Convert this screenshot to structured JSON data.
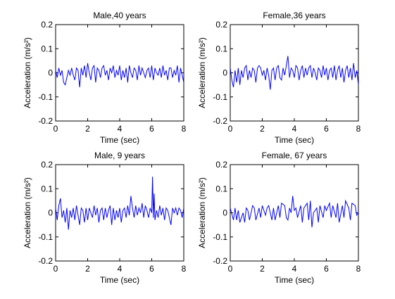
{
  "chart_data": [
    {
      "type": "line",
      "title": "Male,40 years",
      "xlabel": "Time (sec)",
      "ylabel": "Acceleration (m/s²)",
      "xlim": [
        0,
        8
      ],
      "ylim": [
        -0.2,
        0.2
      ],
      "xticks": [
        "0",
        "2",
        "4",
        "6",
        "8"
      ],
      "yticks": [
        "-0.2",
        "-0.1",
        "0",
        "0.1",
        "0.2"
      ],
      "grid": false,
      "series": [
        {
          "color": "#0000ff",
          "x": [
            0,
            0.1,
            0.2,
            0.3,
            0.4,
            0.5,
            0.6,
            0.7,
            0.8,
            0.9,
            1,
            1.1,
            1.2,
            1.3,
            1.4,
            1.5,
            1.6,
            1.7,
            1.8,
            1.9,
            2,
            2.1,
            2.2,
            2.3,
            2.4,
            2.5,
            2.6,
            2.7,
            2.8,
            2.9,
            3,
            3.1,
            3.2,
            3.3,
            3.4,
            3.5,
            3.6,
            3.7,
            3.8,
            3.9,
            4,
            4.1,
            4.2,
            4.3,
            4.4,
            4.5,
            4.6,
            4.7,
            4.8,
            4.9,
            5,
            5.1,
            5.2,
            5.3,
            5.4,
            5.5,
            5.6,
            5.7,
            5.8,
            5.9,
            6,
            6.1,
            6.2,
            6.3,
            6.4,
            6.5,
            6.6,
            6.7,
            6.8,
            6.9,
            7,
            7.1,
            7.2,
            7.3,
            7.4,
            7.5,
            7.6,
            7.7,
            7.8,
            7.9,
            8
          ],
          "y": [
            0.01,
            -0.02,
            0.02,
            -0.01,
            0.01,
            -0.04,
            -0.05,
            -0.02,
            0.01,
            -0.01,
            0.02,
            -0.01,
            -0.03,
            0.02,
            0.01,
            -0.06,
            0.02,
            -0.01,
            0.03,
            -0.02,
            0.04,
            0.0,
            -0.03,
            0.02,
            0.03,
            -0.04,
            0.02,
            0.01,
            -0.02,
            0.02,
            0.03,
            -0.01,
            0.01,
            -0.03,
            0.02,
            0.0,
            0.03,
            -0.02,
            0.01,
            -0.01,
            0.03,
            -0.03,
            0.01,
            -0.02,
            0.02,
            -0.04,
            0.03,
            0.0,
            -0.02,
            0.02,
            0.01,
            -0.03,
            0.03,
            -0.01,
            0.02,
            0.0,
            -0.02,
            0.01,
            0.02,
            -0.02,
            0.03,
            -0.03,
            0.02,
            0.0,
            -0.01,
            0.02,
            -0.02,
            0.03,
            -0.01,
            0.01,
            -0.03,
            0.02,
            0.02,
            -0.02,
            0.01,
            -0.01,
            0.03,
            -0.04,
            0.02,
            -0.01,
            -0.04
          ]
        }
      ]
    },
    {
      "type": "line",
      "title": "Female,36 years",
      "xlabel": "Time (sec)",
      "ylabel": "Acceleration (m/s²)",
      "xlim": [
        0,
        8
      ],
      "ylim": [
        -0.2,
        0.2
      ],
      "xticks": [
        "0",
        "2",
        "4",
        "6",
        "8"
      ],
      "yticks": [
        "-0.2",
        "-0.1",
        "0",
        "0.1",
        "0.2"
      ],
      "grid": false,
      "series": [
        {
          "color": "#0000ff",
          "x": [
            0,
            0.1,
            0.2,
            0.3,
            0.4,
            0.5,
            0.6,
            0.7,
            0.8,
            0.9,
            1,
            1.1,
            1.2,
            1.3,
            1.4,
            1.5,
            1.6,
            1.7,
            1.8,
            1.9,
            2,
            2.1,
            2.2,
            2.3,
            2.4,
            2.5,
            2.6,
            2.7,
            2.8,
            2.9,
            3,
            3.1,
            3.2,
            3.3,
            3.4,
            3.5,
            3.6,
            3.7,
            3.8,
            3.9,
            4,
            4.1,
            4.2,
            4.3,
            4.4,
            4.5,
            4.6,
            4.7,
            4.8,
            4.9,
            5,
            5.1,
            5.2,
            5.3,
            5.4,
            5.5,
            5.6,
            5.7,
            5.8,
            5.9,
            6,
            6.1,
            6.2,
            6.3,
            6.4,
            6.5,
            6.6,
            6.7,
            6.8,
            6.9,
            7,
            7.1,
            7.2,
            7.3,
            7.4,
            7.5,
            7.6,
            7.7,
            7.8,
            7.9,
            8
          ],
          "y": [
            0.02,
            -0.03,
            -0.06,
            0.01,
            -0.04,
            0.02,
            -0.05,
            0.01,
            -0.02,
            0.02,
            0.03,
            -0.03,
            0.01,
            -0.02,
            0.02,
            0.01,
            -0.04,
            0.02,
            0.03,
            0.02,
            -0.01,
            0.01,
            -0.03,
            0.02,
            -0.01,
            -0.07,
            0.01,
            0.02,
            -0.03,
            0.02,
            0.03,
            -0.02,
            -0.03,
            0.02,
            -0.01,
            0.03,
            0.07,
            -0.02,
            0.02,
            0.01,
            -0.02,
            0.03,
            0.02,
            -0.03,
            0.01,
            0.03,
            -0.02,
            0.02,
            -0.01,
            0.02,
            0.03,
            -0.02,
            0.02,
            0.0,
            -0.03,
            0.02,
            0.01,
            -0.02,
            0.03,
            -0.01,
            0.02,
            -0.03,
            0.01,
            0.02,
            -0.02,
            0.03,
            -0.03,
            0.01,
            0.03,
            -0.02,
            0.02,
            -0.04,
            0.01,
            0.03,
            -0.02,
            0.02,
            -0.03,
            0.04,
            -0.02,
            0.01,
            -0.05
          ]
        }
      ]
    },
    {
      "type": "line",
      "title": "Male, 9 years",
      "xlabel": "Time (sec)",
      "ylabel": "Acceleration (m/s²)",
      "xlim": [
        0,
        8
      ],
      "ylim": [
        -0.2,
        0.2
      ],
      "xticks": [
        "0",
        "2",
        "4",
        "6",
        "8"
      ],
      "yticks": [
        "-0.2",
        "-0.1",
        "0",
        "0.1",
        "0.2"
      ],
      "grid": false,
      "series": [
        {
          "color": "#0000ff",
          "x": [
            0,
            0.1,
            0.2,
            0.3,
            0.4,
            0.5,
            0.6,
            0.7,
            0.8,
            0.9,
            1,
            1.1,
            1.2,
            1.3,
            1.4,
            1.5,
            1.6,
            1.7,
            1.8,
            1.9,
            2,
            2.1,
            2.2,
            2.3,
            2.4,
            2.5,
            2.6,
            2.7,
            2.8,
            2.9,
            3,
            3.1,
            3.2,
            3.3,
            3.4,
            3.5,
            3.6,
            3.7,
            3.8,
            3.9,
            4,
            4.1,
            4.2,
            4.3,
            4.4,
            4.5,
            4.6,
            4.7,
            4.8,
            4.9,
            5,
            5.1,
            5.2,
            5.3,
            5.4,
            5.5,
            5.6,
            5.7,
            5.8,
            5.9,
            6,
            6.05,
            6.1,
            6.15,
            6.2,
            6.3,
            6.4,
            6.5,
            6.6,
            6.7,
            6.8,
            6.9,
            7,
            7.1,
            7.2,
            7.3,
            7.4,
            7.5,
            7.6,
            7.7,
            7.8,
            7.9,
            8
          ],
          "y": [
            0.02,
            -0.03,
            0.03,
            0.06,
            -0.02,
            0.01,
            -0.04,
            0.02,
            -0.07,
            0.01,
            -0.02,
            0.02,
            -0.03,
            0.03,
            -0.01,
            -0.05,
            0.02,
            0.01,
            -0.04,
            0.02,
            -0.03,
            0.02,
            0.0,
            -0.02,
            0.03,
            -0.01,
            0.02,
            -0.04,
            0.01,
            0.02,
            -0.03,
            0.02,
            -0.02,
            0.01,
            0.03,
            -0.05,
            0.02,
            -0.03,
            0.01,
            -0.02,
            0.02,
            -0.04,
            0.01,
            0.02,
            -0.02,
            0.03,
            -0.01,
            0.07,
            0.02,
            -0.02,
            0.03,
            -0.01,
            0.02,
            0.0,
            0.04,
            -0.02,
            0.03,
            0.01,
            -0.02,
            0.02,
            0.0,
            0.15,
            -0.02,
            0.08,
            -0.03,
            0.01,
            -0.02,
            0.03,
            -0.01,
            0.02,
            -0.03,
            0.02,
            0.01,
            -0.02,
            -0.05,
            0.02,
            0.0,
            0.02,
            -0.01,
            0.02,
            0.01,
            -0.02,
            0.02
          ]
        }
      ]
    },
    {
      "type": "line",
      "title": "Female, 67 years",
      "xlabel": "Time (sec)",
      "ylabel": "Acceleration (m/s²)",
      "xlim": [
        0,
        8
      ],
      "ylim": [
        -0.2,
        0.2
      ],
      "xticks": [
        "0",
        "2",
        "4",
        "6",
        "8"
      ],
      "yticks": [
        "-0.2",
        "-0.1",
        "0",
        "0.1",
        "0.2"
      ],
      "grid": false,
      "series": [
        {
          "color": "#0000ff",
          "x": [
            0,
            0.2,
            0.3,
            0.4,
            0.5,
            0.6,
            0.8,
            0.9,
            1.0,
            1.1,
            1.2,
            1.4,
            1.5,
            1.6,
            1.8,
            1.9,
            2.0,
            2.2,
            2.3,
            2.4,
            2.6,
            2.7,
            2.8,
            3.0,
            3.1,
            3.2,
            3.4,
            3.5,
            3.6,
            3.7,
            3.8,
            3.9,
            4.0,
            4.1,
            4.2,
            4.4,
            4.5,
            4.6,
            4.8,
            4.9,
            5.0,
            5.1,
            5.2,
            5.4,
            5.5,
            5.6,
            5.8,
            5.9,
            6.0,
            6.2,
            6.3,
            6.4,
            6.6,
            6.7,
            6.8,
            7.0,
            7.1,
            7.2,
            7.4,
            7.5,
            7.6,
            7.8,
            7.9,
            8
          ],
          "y": [
            0.02,
            -0.03,
            0.02,
            -0.03,
            0.01,
            -0.04,
            0.0,
            -0.04,
            0.02,
            0.01,
            -0.03,
            0.03,
            0.02,
            -0.03,
            0.02,
            -0.02,
            0.03,
            -0.01,
            0.02,
            0.03,
            -0.03,
            0.02,
            -0.03,
            0.03,
            -0.02,
            0.04,
            0.03,
            -0.02,
            -0.03,
            0.02,
            0.0,
            0.07,
            0.01,
            0.02,
            -0.02,
            0.03,
            -0.04,
            0.02,
            0.04,
            -0.03,
            0.05,
            -0.06,
            0.0,
            0.02,
            -0.04,
            0.03,
            -0.02,
            0.03,
            0.01,
            0.04,
            -0.02,
            0.03,
            -0.02,
            0.04,
            -0.04,
            0.03,
            -0.02,
            0.05,
            0.02,
            -0.03,
            0.04,
            0.03,
            -0.01,
            0.0
          ]
        }
      ]
    }
  ]
}
